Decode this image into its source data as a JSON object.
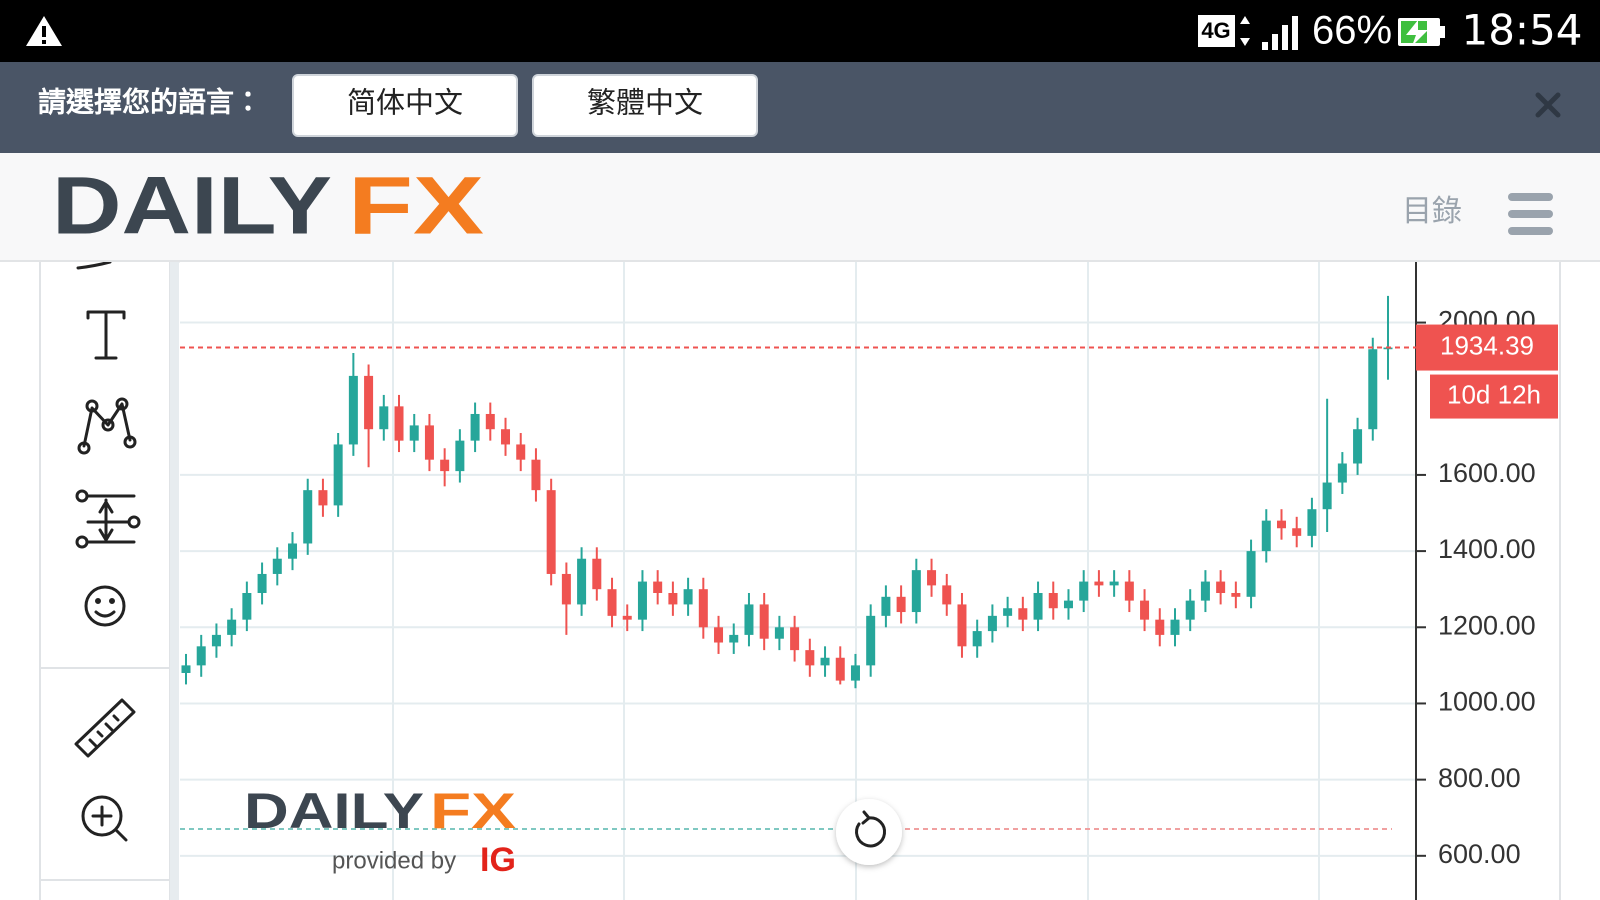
{
  "status_bar": {
    "network": "4G",
    "battery": "66%",
    "time": "18:54"
  },
  "language_bar": {
    "prompt": "請選擇您的語言：",
    "options": [
      "简体中文",
      "繁體中文"
    ]
  },
  "header": {
    "logo": [
      "DAILY",
      "FX"
    ],
    "menu": "目錄"
  },
  "watermark": {
    "logo": [
      "DAILY",
      "FX"
    ],
    "provided_by": "provided by",
    "brand": "IG"
  },
  "chart_data": {
    "type": "candlestick",
    "up_color": "#26a69a",
    "down_color": "#ef5350",
    "grid": true,
    "ylim": [
      484,
      2159
    ],
    "yticks": [
      {
        "value": 600,
        "label": "600.00"
      },
      {
        "value": 800,
        "label": "800.00"
      },
      {
        "value": 1000,
        "label": "1000.00"
      },
      {
        "value": 1200,
        "label": "1200.00"
      },
      {
        "value": 1400,
        "label": "1400.00"
      },
      {
        "value": 1600,
        "label": "1600.00"
      },
      {
        "value": 2000,
        "label": "2000.00"
      }
    ],
    "last_price": 1934.39,
    "countdown": "10d 12h",
    "open": [
      1080,
      1100,
      1150,
      1180,
      1220,
      1290,
      1340,
      1380,
      1420,
      1560,
      1520,
      1680,
      1860,
      1720,
      1780,
      1690,
      1730,
      1640,
      1610,
      1690,
      1760,
      1720,
      1680,
      1640,
      1560,
      1340,
      1260,
      1380,
      1300,
      1230,
      1220,
      1320,
      1290,
      1260,
      1300,
      1200,
      1160,
      1180,
      1260,
      1170,
      1200,
      1140,
      1100,
      1120,
      1060,
      1100,
      1230,
      1280,
      1240,
      1350,
      1310,
      1260,
      1150,
      1190,
      1230,
      1250,
      1220,
      1290,
      1250,
      1270,
      1320,
      1310,
      1320,
      1270,
      1220,
      1180,
      1220,
      1270,
      1320,
      1290,
      1280,
      1400,
      1480,
      1460,
      1440,
      1510,
      1580,
      1630,
      1720,
      1930
    ],
    "high": [
      1130,
      1180,
      1210,
      1250,
      1320,
      1370,
      1410,
      1450,
      1590,
      1590,
      1710,
      1920,
      1890,
      1810,
      1810,
      1760,
      1760,
      1670,
      1720,
      1790,
      1790,
      1750,
      1710,
      1670,
      1590,
      1370,
      1410,
      1410,
      1330,
      1260,
      1350,
      1350,
      1320,
      1330,
      1330,
      1230,
      1210,
      1290,
      1290,
      1230,
      1230,
      1170,
      1150,
      1150,
      1130,
      1260,
      1310,
      1310,
      1380,
      1380,
      1340,
      1290,
      1220,
      1260,
      1280,
      1280,
      1320,
      1320,
      1300,
      1350,
      1350,
      1350,
      1350,
      1300,
      1250,
      1250,
      1300,
      1350,
      1350,
      1320,
      1430,
      1510,
      1510,
      1490,
      1540,
      1800,
      1660,
      1750,
      1960,
      2070
    ],
    "low": [
      1050,
      1070,
      1120,
      1150,
      1190,
      1260,
      1310,
      1350,
      1390,
      1490,
      1490,
      1650,
      1620,
      1690,
      1660,
      1660,
      1610,
      1570,
      1580,
      1660,
      1690,
      1650,
      1610,
      1530,
      1310,
      1180,
      1230,
      1270,
      1200,
      1190,
      1190,
      1260,
      1230,
      1230,
      1170,
      1130,
      1130,
      1150,
      1140,
      1140,
      1110,
      1070,
      1070,
      1050,
      1040,
      1070,
      1200,
      1210,
      1210,
      1280,
      1230,
      1120,
      1120,
      1160,
      1200,
      1190,
      1190,
      1220,
      1220,
      1240,
      1280,
      1280,
      1240,
      1190,
      1150,
      1150,
      1190,
      1240,
      1260,
      1250,
      1250,
      1370,
      1430,
      1410,
      1410,
      1450,
      1550,
      1600,
      1690,
      1850
    ],
    "close": [
      1100,
      1150,
      1180,
      1220,
      1290,
      1340,
      1380,
      1420,
      1560,
      1520,
      1680,
      1860,
      1720,
      1780,
      1690,
      1730,
      1640,
      1610,
      1690,
      1760,
      1720,
      1680,
      1640,
      1560,
      1340,
      1260,
      1380,
      1300,
      1230,
      1220,
      1320,
      1290,
      1260,
      1300,
      1200,
      1160,
      1180,
      1260,
      1170,
      1200,
      1140,
      1100,
      1120,
      1060,
      1100,
      1230,
      1280,
      1240,
      1350,
      1310,
      1260,
      1150,
      1190,
      1230,
      1250,
      1220,
      1290,
      1250,
      1270,
      1320,
      1310,
      1320,
      1270,
      1220,
      1180,
      1220,
      1270,
      1320,
      1290,
      1280,
      1400,
      1480,
      1460,
      1440,
      1510,
      1580,
      1630,
      1720,
      1930,
      1934.39
    ]
  }
}
